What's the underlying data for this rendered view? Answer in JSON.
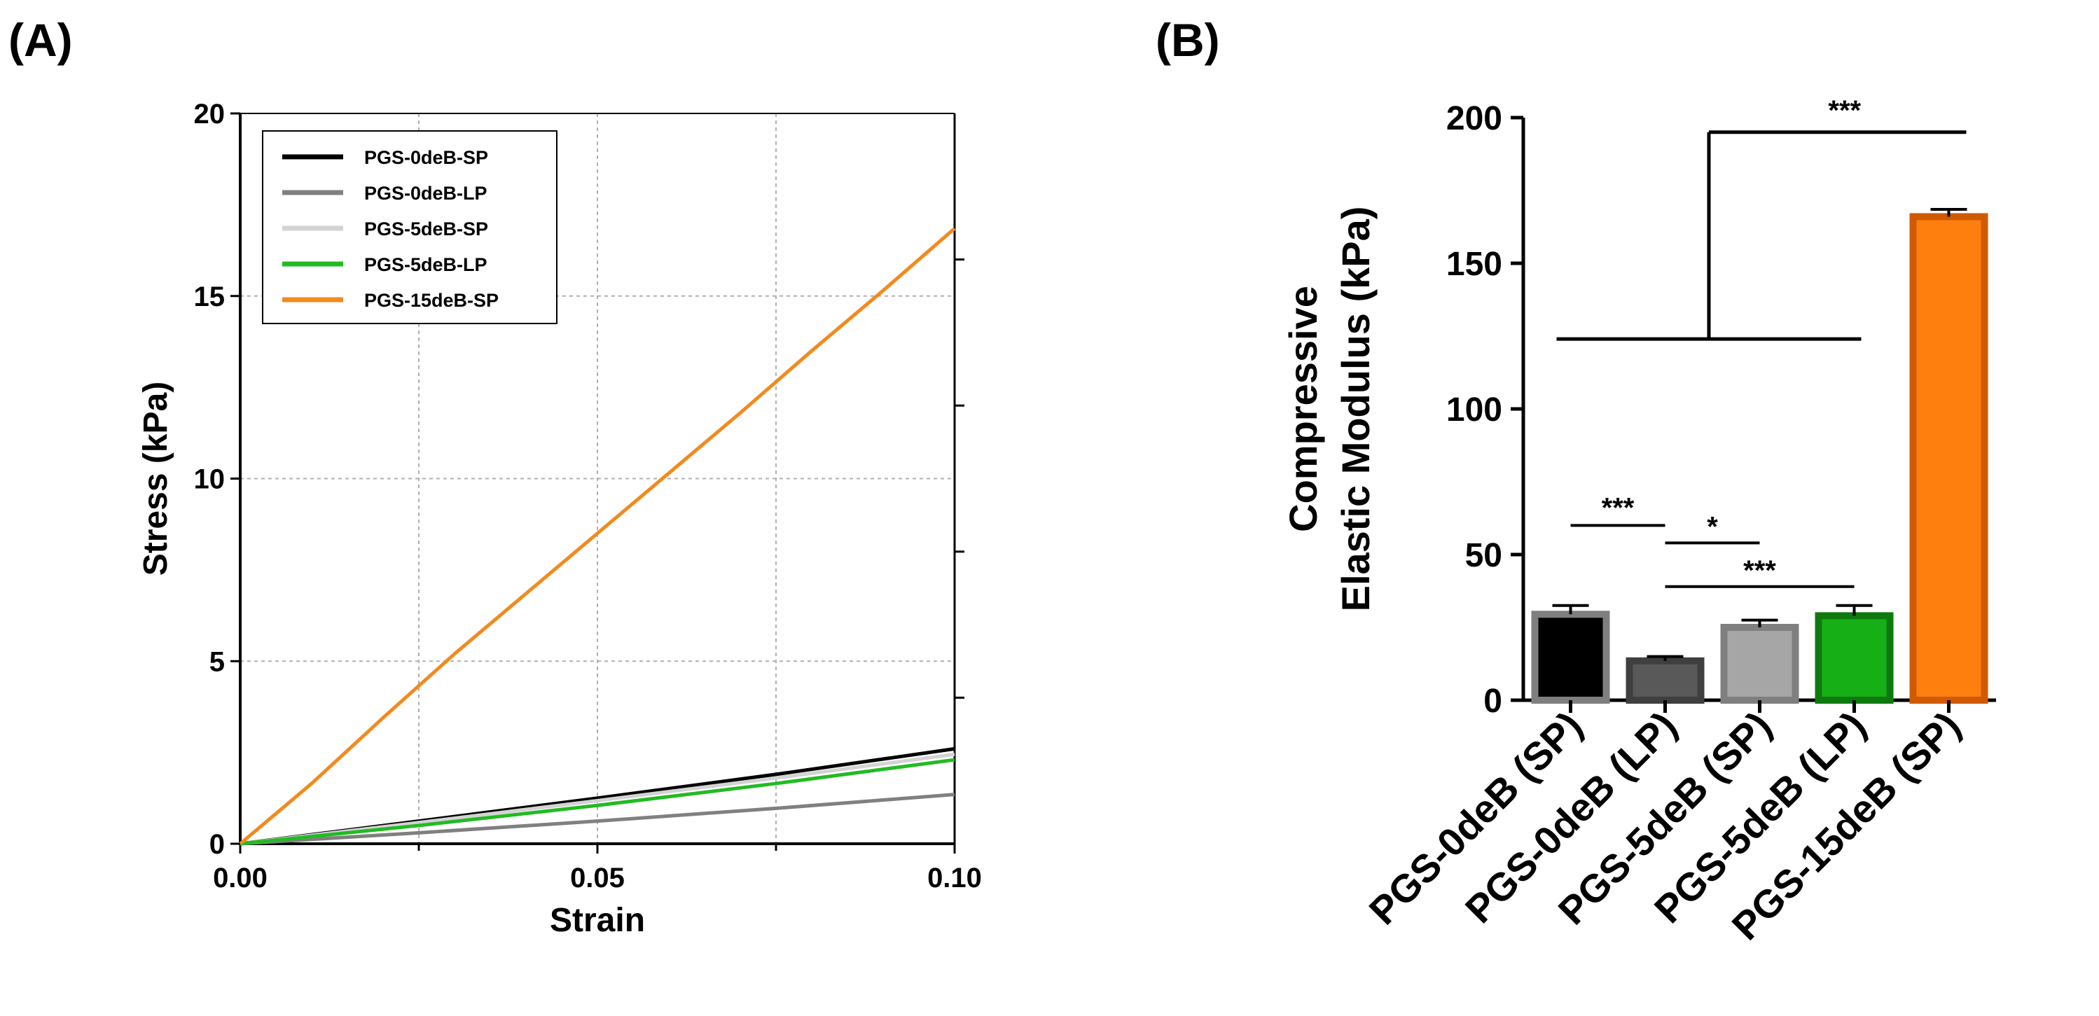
{
  "panel_a": {
    "label": "(A)"
  },
  "panel_b": {
    "label": "(B)"
  },
  "chart_data": [
    {
      "type": "line",
      "title": "",
      "xlabel": "Strain",
      "ylabel": "Stress (kPa)",
      "xlim": [
        0,
        0.1
      ],
      "ylim": [
        0,
        20
      ],
      "xticks": [
        0.0,
        0.05,
        0.1
      ],
      "xtick_labels": [
        "0.00",
        "0.05",
        "0.10"
      ],
      "yticks": [
        0,
        5,
        10,
        15,
        20
      ],
      "ytick_labels": [
        "0",
        "5",
        "10",
        "15",
        "20"
      ],
      "grid": true,
      "legend_position": "top-left",
      "series": [
        {
          "name": "PGS-0deB-SP",
          "color": "#000000",
          "x": [
            0,
            0.025,
            0.05,
            0.075,
            0.1
          ],
          "y": [
            0,
            0.62,
            1.25,
            1.9,
            2.6
          ]
        },
        {
          "name": "PGS-0deB-LP",
          "color": "#808080",
          "x": [
            0,
            0.025,
            0.05,
            0.075,
            0.1
          ],
          "y": [
            0,
            0.3,
            0.62,
            0.97,
            1.35
          ]
        },
        {
          "name": "PGS-5deB-SP",
          "color": "#d3d3d3",
          "x": [
            0,
            0.025,
            0.05,
            0.075,
            0.1
          ],
          "y": [
            0,
            0.58,
            1.18,
            1.8,
            2.45
          ]
        },
        {
          "name": "PGS-5deB-LP",
          "color": "#22bb22",
          "x": [
            0,
            0.025,
            0.05,
            0.075,
            0.1
          ],
          "y": [
            0,
            0.5,
            1.05,
            1.65,
            2.3
          ]
        },
        {
          "name": "PGS-15deB-SP",
          "color": "#f28a1e",
          "x": [
            0,
            0.01,
            0.02,
            0.03,
            0.04,
            0.05,
            0.06,
            0.07,
            0.08,
            0.09,
            0.1
          ],
          "y": [
            0,
            1.65,
            3.45,
            5.2,
            6.85,
            8.5,
            10.15,
            11.8,
            13.5,
            15.15,
            16.85
          ]
        }
      ]
    },
    {
      "type": "bar",
      "title": "",
      "xlabel": "",
      "ylabel_lines": [
        "Compressive",
        "Elastic Modulus (kPa)"
      ],
      "ylim": [
        0,
        200
      ],
      "yticks": [
        0,
        50,
        100,
        150,
        200
      ],
      "ytick_labels": [
        "0",
        "50",
        "100",
        "150",
        "200"
      ],
      "categories": [
        "PGS-0deB (SP)",
        "PGS-0deB (LP)",
        "PGS-5deB (SP)",
        "PGS-5deB (LP)",
        "PGS-15deB (SP)"
      ],
      "values": [
        29.5,
        13.5,
        25,
        29,
        166
      ],
      "errors": [
        3,
        1.5,
        2.5,
        3.5,
        2.5
      ],
      "colors": [
        "#000000",
        "#595959",
        "#a6a6a6",
        "#16b016",
        "#ff7f0e"
      ],
      "edge_colors": [
        "#7f7f7f",
        "#3f3f3f",
        "#7f7f7f",
        "#0e7a0e",
        "#d05a00"
      ],
      "significance": [
        {
          "label": "***",
          "from": 0,
          "to": 1,
          "level": 60
        },
        {
          "label": "*",
          "from": 1,
          "to": 2,
          "level": 54
        },
        {
          "label": "***",
          "from": 1,
          "to": 3,
          "level": 39
        },
        {
          "label": "***",
          "from": 0,
          "to": 4,
          "level": 124,
          "top": 195
        }
      ]
    }
  ]
}
